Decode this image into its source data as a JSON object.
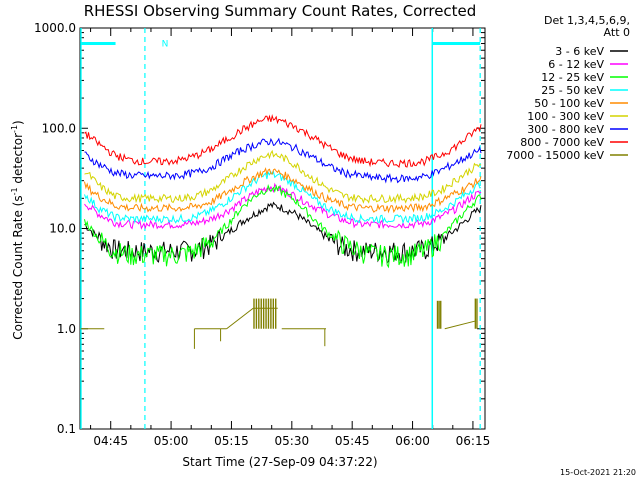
{
  "chart_data": {
    "type": "line",
    "title": "RHESSI Observing Summary Count Rates, Corrected",
    "xlabel": "Start Time (27-Sep-09 04:37:22)",
    "ylabel_prefix": "Corrected Count Rate (s",
    "ylabel_sup1": "-1",
    "ylabel_mid": " detector",
    "ylabel_sup2": "-1",
    "ylabel_suffix": ")",
    "yscale": "log",
    "ylim": [
      0.1,
      1000
    ],
    "y_ticks": [
      {
        "v": 1000,
        "label": "1000.0"
      },
      {
        "v": 100,
        "label": "100.0"
      },
      {
        "v": 10,
        "label": "10.0"
      },
      {
        "v": 1,
        "label": "1.0"
      },
      {
        "v": 0.1,
        "label": "0.1"
      }
    ],
    "xlim_minutes": [
      277.37,
      378.0
    ],
    "x_ticks": [
      {
        "t": 285,
        "label": "04:45"
      },
      {
        "t": 300,
        "label": "05:00"
      },
      {
        "t": 315,
        "label": "05:15"
      },
      {
        "t": 330,
        "label": "05:30"
      },
      {
        "t": 345,
        "label": "05:45"
      },
      {
        "t": 360,
        "label": "06:00"
      },
      {
        "t": 375,
        "label": "06:15"
      }
    ],
    "legend_header": [
      "Det 1,3,4,5,6,9,",
      "Att 0"
    ],
    "legend_position": "right, outside plot",
    "series": [
      {
        "name": "3 - 6 keV",
        "color": "#000000",
        "x": [
          278.5,
          282,
          286,
          290,
          294,
          298,
          302,
          306,
          310,
          314,
          318,
          322,
          324.5,
          327,
          331,
          335,
          339,
          343,
          347,
          351,
          355,
          359,
          363,
          367,
          371,
          375,
          377
        ],
        "y": [
          11,
          8,
          6.2,
          6,
          6,
          6,
          6,
          6.2,
          7,
          9,
          12,
          15,
          17,
          16.5,
          14,
          10.5,
          8,
          6.5,
          6,
          6,
          6,
          6,
          6.2,
          7.5,
          10,
          14,
          16
        ]
      },
      {
        "name": "6 - 12 keV",
        "color": "#ff00ff",
        "x": [
          278.5,
          282,
          286,
          290,
          294,
          298,
          302,
          306,
          310,
          314,
          318,
          322,
          324.5,
          327,
          331,
          335,
          339,
          343,
          347,
          351,
          355,
          359,
          363,
          367,
          371,
          375,
          377
        ],
        "y": [
          18,
          14,
          11.5,
          11,
          11,
          11,
          11,
          11.3,
          12.5,
          15,
          19,
          24,
          26,
          25,
          21,
          17,
          14,
          12,
          11,
          11,
          11,
          11,
          11.3,
          13,
          16,
          21,
          23
        ]
      },
      {
        "name": "12 - 25 keV",
        "color": "#00ff00",
        "x": [
          278.5,
          282,
          286,
          290,
          294,
          298,
          302,
          306,
          310,
          314,
          318,
          322,
          324.5,
          327,
          331,
          335,
          339,
          343,
          347,
          351,
          355,
          359,
          363,
          367,
          371,
          375,
          377
        ],
        "y": [
          12,
          8,
          6,
          5.5,
          5.5,
          5.5,
          5.5,
          6,
          7.5,
          11,
          17,
          23,
          25,
          24,
          19,
          13,
          9,
          7,
          6,
          5.5,
          5.5,
          5.5,
          6,
          8,
          12,
          18,
          21
        ]
      },
      {
        "name": "25 - 50 keV",
        "color": "#00ffff",
        "x": [
          278.5,
          282,
          286,
          290,
          294,
          298,
          302,
          306,
          310,
          314,
          318,
          322,
          324.5,
          327,
          331,
          335,
          339,
          343,
          347,
          351,
          355,
          359,
          363,
          367,
          371,
          375,
          377
        ],
        "y": [
          22,
          16,
          13,
          12.5,
          12.5,
          12.5,
          12.5,
          13,
          15,
          19,
          25,
          32,
          35,
          33,
          27,
          20,
          16,
          13.5,
          12.5,
          12.5,
          12.5,
          12.5,
          13,
          15,
          19,
          25,
          28
        ]
      },
      {
        "name": "50 - 100 keV",
        "color": "#ff8c00",
        "x": [
          278.5,
          282,
          286,
          290,
          294,
          298,
          302,
          306,
          310,
          314,
          318,
          322,
          324.5,
          327,
          331,
          335,
          339,
          343,
          347,
          351,
          355,
          359,
          363,
          367,
          371,
          375,
          377
        ],
        "y": [
          27,
          21,
          17,
          16,
          16,
          16,
          16,
          16.5,
          18.5,
          23,
          29,
          35,
          38,
          36,
          30,
          24,
          19.5,
          17,
          16,
          16,
          16,
          16,
          16.5,
          19,
          23,
          28,
          31
        ]
      },
      {
        "name": "100 - 300 keV",
        "color": "#d4d400",
        "x": [
          278.5,
          282,
          286,
          290,
          294,
          298,
          302,
          306,
          310,
          314,
          318,
          322,
          324.5,
          327,
          331,
          335,
          339,
          343,
          347,
          351,
          355,
          359,
          363,
          367,
          371,
          375,
          377
        ],
        "y": [
          38,
          27,
          21,
          20,
          20,
          20,
          20,
          21,
          24,
          31,
          41,
          51,
          55,
          53,
          43,
          32,
          25,
          21,
          20,
          20,
          20,
          20,
          21,
          24,
          31,
          40,
          44
        ]
      },
      {
        "name": "300 - 800 keV",
        "color": "#0000ff",
        "x": [
          278.5,
          282,
          286,
          290,
          294,
          298,
          302,
          306,
          310,
          314,
          318,
          322,
          324.5,
          327,
          331,
          335,
          339,
          343,
          347,
          351,
          355,
          359,
          363,
          367,
          371,
          375,
          377
        ],
        "y": [
          55,
          44,
          36,
          34,
          33.5,
          33.5,
          34,
          36,
          41,
          51,
          62,
          71,
          74,
          72,
          63,
          52,
          42,
          36,
          33.5,
          32,
          31.5,
          31.5,
          33,
          38,
          46,
          56,
          60
        ]
      },
      {
        "name": "800 - 7000 keV",
        "color": "#ff0000",
        "x": [
          278.5,
          282,
          286,
          290,
          294,
          298,
          302,
          306,
          310,
          314,
          318,
          322,
          324.5,
          327,
          331,
          335,
          339,
          343,
          347,
          351,
          355,
          359,
          363,
          367,
          371,
          375,
          377
        ],
        "y": [
          90,
          70,
          54,
          48,
          46.5,
          46.5,
          48,
          53,
          62,
          78,
          98,
          118,
          125,
          120,
          103,
          83,
          65,
          53,
          47.5,
          45.5,
          45,
          45,
          47,
          54,
          67,
          90,
          105
        ]
      },
      {
        "name": "7000 - 15000 keV",
        "color": "#808000",
        "sparse": true,
        "segments": [
          {
            "x": [
              277.6,
              283.4
            ],
            "y": [
              1,
              1
            ]
          },
          {
            "x": [
              305.8,
              313.8
            ],
            "y": [
              1,
              1
            ]
          },
          {
            "x": [
              313.8,
              320.4
            ],
            "y": [
              1,
              1.6
            ]
          },
          {
            "x": [
              320.4,
              326.5
            ],
            "y": [
              1.6,
              1.6
            ]
          },
          {
            "x": [
              327.5,
              338.5
            ],
            "y": [
              1,
              1
            ]
          },
          {
            "x": [
              368.0,
              375.8
            ],
            "y": [
              1,
              1.2
            ]
          }
        ],
        "dips": [
          {
            "x": 305.8,
            "y0": 1,
            "y1": 0.63
          },
          {
            "x": 312.3,
            "y0": 1,
            "y1": 0.75
          },
          {
            "x": 338.2,
            "y0": 1,
            "y1": 0.67
          }
        ],
        "spikes": [
          {
            "x": [
              320.6,
              321.2,
              321.8,
              322.4,
              323.0,
              323.6,
              324.2,
              324.8,
              325.4,
              326.0
            ],
            "y0": 1,
            "y1": 2.0
          },
          {
            "x": [
              366.2,
              366.6,
              367.0
            ],
            "y0": 1,
            "y1": 1.9
          },
          {
            "x": [
              375.6,
              376.0
            ],
            "y0": 1,
            "y1": 2.0
          }
        ]
      }
    ],
    "overlays": {
      "color": "#00ffff",
      "night_bars": [
        {
          "x0": 277.5,
          "x1": 286.2,
          "y": 700
        },
        {
          "x0": 364.9,
          "x1": 376.8,
          "y": 700
        }
      ],
      "bar_marker": {
        "x": 298.5,
        "y": 700,
        "label": "N"
      },
      "solid_lines": [
        277.6,
        364.9
      ],
      "dashed_lines": [
        293.5,
        376.8
      ]
    },
    "timestamp": "15-Oct-2021 21:20"
  }
}
